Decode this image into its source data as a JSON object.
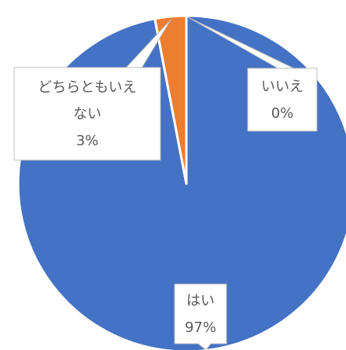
{
  "chart_data": {
    "type": "pie",
    "slices": [
      {
        "label": "はい",
        "value": 97,
        "percent_label": "97%",
        "color": "#4472c4"
      },
      {
        "label": "いいえ",
        "value": 0,
        "percent_label": "0%",
        "color": "#a5a5a5"
      },
      {
        "label": "どちらともいえない",
        "value": 3,
        "percent_label": "3%",
        "color": "#ed7d31"
      }
    ],
    "data_labels": [
      {
        "lines": [
          "はい"
        ],
        "percent": "97%"
      },
      {
        "lines": [
          "いいえ"
        ],
        "percent": "0%"
      },
      {
        "lines": [
          "どちらともいえ",
          "ない"
        ],
        "percent": "3%"
      }
    ],
    "legend": "none"
  }
}
